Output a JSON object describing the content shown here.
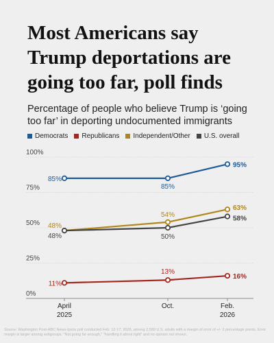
{
  "headline": "Most Americans say Trump deportations are going too far, poll finds",
  "subtitle": "Percentage of people who believe Trump is ‘going too far’ in deporting undocumented immigrants",
  "source_note": "Source: Washington Post-ABC News-Ipsos poll conducted Feb. 12-17, 2026, among 2,589 U.S. adults with a margin of error of +/- 2 percentage points. Error margin is larger among subgroups. \"Not going far enough,\" \"handling it about right\" and no opinion not shown.",
  "colors": {
    "Democrats": "#1d5a96",
    "Republicans": "#a4271f",
    "Independent/Other": "#b0861a",
    "U.S. overall": "#444444",
    "grid": "#d2d2d2",
    "axis": "#888888"
  },
  "chart_data": {
    "type": "line",
    "title": "Percentage of people who believe Trump is ‘going too far’ in deporting undocumented immigrants",
    "x": [
      "April 2025",
      "Oct.",
      "Feb. 2026"
    ],
    "x_tick_labels": [
      [
        "April",
        "2025"
      ],
      [
        "Oct.",
        ""
      ],
      [
        "Feb.",
        "2026"
      ]
    ],
    "ylim": [
      0,
      100
    ],
    "y_ticks": [
      0,
      25,
      50,
      75,
      100
    ],
    "y_tick_labels": [
      "0%",
      "25%",
      "50%",
      "75%",
      "100%"
    ],
    "grid": true,
    "legend_position": "top",
    "series": [
      {
        "name": "Democrats",
        "values": [
          85,
          85,
          95
        ],
        "labels": [
          "85%",
          "85%",
          "95%"
        ]
      },
      {
        "name": "Republicans",
        "values": [
          11,
          13,
          16
        ],
        "labels": [
          "11%",
          "13%",
          "16%"
        ]
      },
      {
        "name": "Independent/Other",
        "values": [
          48,
          54,
          63
        ],
        "labels": [
          "48%",
          "54%",
          "63%"
        ]
      },
      {
        "name": "U.S. overall",
        "values": [
          48,
          50,
          58
        ],
        "labels": [
          "48%",
          "50%",
          "58%"
        ]
      }
    ]
  }
}
